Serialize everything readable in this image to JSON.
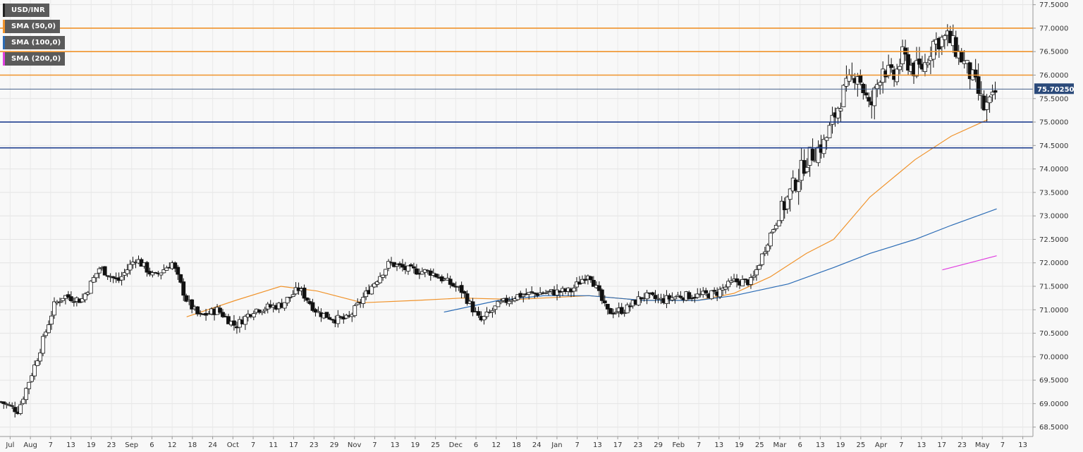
{
  "legend": [
    {
      "label": "USD/INR",
      "color": "#222222"
    },
    {
      "label": "SMA (50,0)",
      "color": "#f0932b"
    },
    {
      "label": "SMA (100,0)",
      "color": "#2a6bb5"
    },
    {
      "label": "SMA (200,0)",
      "color": "#e040e0"
    }
  ],
  "chart_data": {
    "type": "candlestick",
    "title": "",
    "symbol": "USD/INR",
    "ylim": [
      68.3,
      77.6
    ],
    "y_ticks": [
      "68.5000",
      "69.0000",
      "69.5000",
      "70.0000",
      "70.5000",
      "71.0000",
      "71.5000",
      "72.0000",
      "72.5000",
      "73.0000",
      "73.5000",
      "74.0000",
      "74.5000",
      "75.0000",
      "75.5000",
      "76.0000",
      "76.5000",
      "77.0000",
      "77.5000"
    ],
    "x_tick_labels": [
      "Jul",
      "Aug",
      "7",
      "13",
      "19",
      "23",
      "Sep",
      "6",
      "12",
      "18",
      "24",
      "Oct",
      "7",
      "11",
      "17",
      "23",
      "29",
      "Nov",
      "7",
      "13",
      "19",
      "25",
      "Dec",
      "6",
      "12",
      "18",
      "24",
      "Jan",
      "7",
      "13",
      "17",
      "23",
      "29",
      "Feb",
      "7",
      "13",
      "19",
      "25",
      "Mar",
      "6",
      "13",
      "19",
      "25",
      "Apr",
      "7",
      "13",
      "17",
      "23",
      "May",
      "7",
      "13"
    ],
    "x_range": [
      0,
      57
    ],
    "last_price": 75.7025,
    "last_price_label": "75.70250",
    "horizontal_levels": [
      {
        "value": 77.0,
        "color": "#f0932b"
      },
      {
        "value": 76.5,
        "color": "#f0932b"
      },
      {
        "value": 76.0,
        "color": "#f0932b"
      },
      {
        "value": 75.0,
        "color": "#1f3f8f"
      },
      {
        "value": 74.45,
        "color": "#1f3f8f"
      }
    ],
    "price_path": [
      [
        0.0,
        69.05
      ],
      [
        1.0,
        68.85
      ],
      [
        2.0,
        69.9
      ],
      [
        3.0,
        71.1
      ],
      [
        3.5,
        71.3
      ],
      [
        4.5,
        71.2
      ],
      [
        5.5,
        71.9
      ],
      [
        6.5,
        71.6
      ],
      [
        7.5,
        72.1
      ],
      [
        8.5,
        71.7
      ],
      [
        9.5,
        72.0
      ],
      [
        10.3,
        71.2
      ],
      [
        11.0,
        70.85
      ],
      [
        12.0,
        71.0
      ],
      [
        13.0,
        70.65
      ],
      [
        14.0,
        71.0
      ],
      [
        15.5,
        71.1
      ],
      [
        16.5,
        71.45
      ],
      [
        17.5,
        70.95
      ],
      [
        18.5,
        70.8
      ],
      [
        19.2,
        70.8
      ],
      [
        20.5,
        71.5
      ],
      [
        21.5,
        72.0
      ],
      [
        22.5,
        71.85
      ],
      [
        23.8,
        71.8
      ],
      [
        25.5,
        71.4
      ],
      [
        26.5,
        70.75
      ],
      [
        27.5,
        71.1
      ],
      [
        28.5,
        71.3
      ],
      [
        29.5,
        71.35
      ],
      [
        31.5,
        71.4
      ],
      [
        32.5,
        71.8
      ],
      [
        33.5,
        70.95
      ],
      [
        34.5,
        71.0
      ],
      [
        35.5,
        71.3
      ],
      [
        36.5,
        71.2
      ],
      [
        37.5,
        71.3
      ],
      [
        38.5,
        71.3
      ],
      [
        39.5,
        71.35
      ],
      [
        40.5,
        71.6
      ],
      [
        41.5,
        71.6
      ],
      [
        42.5,
        72.6
      ],
      [
        43.5,
        73.4
      ],
      [
        44.5,
        74.2
      ],
      [
        45.5,
        74.55
      ],
      [
        46.5,
        75.6
      ],
      [
        47.3,
        76.1
      ],
      [
        48.0,
        75.25
      ],
      [
        48.7,
        76.2
      ],
      [
        49.3,
        75.9
      ],
      [
        49.8,
        76.4
      ],
      [
        50.5,
        76.1
      ],
      [
        51.0,
        76.2
      ],
      [
        51.5,
        76.7
      ],
      [
        52.3,
        76.8
      ],
      [
        53.0,
        76.4
      ],
      [
        53.7,
        75.9
      ],
      [
        54.3,
        75.3
      ],
      [
        54.7,
        75.4
      ],
      [
        55.0,
        75.7
      ]
    ],
    "series": [
      {
        "name": "SMA (50,0)",
        "color": "#f0932b",
        "points": [
          [
            10.3,
            70.85
          ],
          [
            13.0,
            71.2
          ],
          [
            15.5,
            71.5
          ],
          [
            17.5,
            71.4
          ],
          [
            20.0,
            71.15
          ],
          [
            23.0,
            71.2
          ],
          [
            25.5,
            71.25
          ],
          [
            28.5,
            71.22
          ],
          [
            32.5,
            71.3
          ],
          [
            35.5,
            71.2
          ],
          [
            38.5,
            71.2
          ],
          [
            40.5,
            71.35
          ],
          [
            42.5,
            71.7
          ],
          [
            44.5,
            72.2
          ],
          [
            46.0,
            72.5
          ],
          [
            48.0,
            73.4
          ],
          [
            50.5,
            74.2
          ],
          [
            52.5,
            74.7
          ],
          [
            54.5,
            75.05
          ]
        ]
      },
      {
        "name": "SMA (100,0)",
        "color": "#2a6bb5",
        "points": [
          [
            24.5,
            70.95
          ],
          [
            27.5,
            71.2
          ],
          [
            30.0,
            71.3
          ],
          [
            32.5,
            71.3
          ],
          [
            35.5,
            71.2
          ],
          [
            38.5,
            71.2
          ],
          [
            40.5,
            71.3
          ],
          [
            43.5,
            71.55
          ],
          [
            46.0,
            71.9
          ],
          [
            48.0,
            72.2
          ],
          [
            50.5,
            72.5
          ],
          [
            52.5,
            72.8
          ],
          [
            55.0,
            73.15
          ]
        ]
      },
      {
        "name": "SMA (200,0)",
        "color": "#e040e0",
        "points": [
          [
            52.0,
            71.85
          ],
          [
            53.0,
            71.95
          ],
          [
            54.0,
            72.05
          ],
          [
            55.0,
            72.15
          ]
        ]
      }
    ],
    "grid": true,
    "legend_position": "top-left"
  }
}
